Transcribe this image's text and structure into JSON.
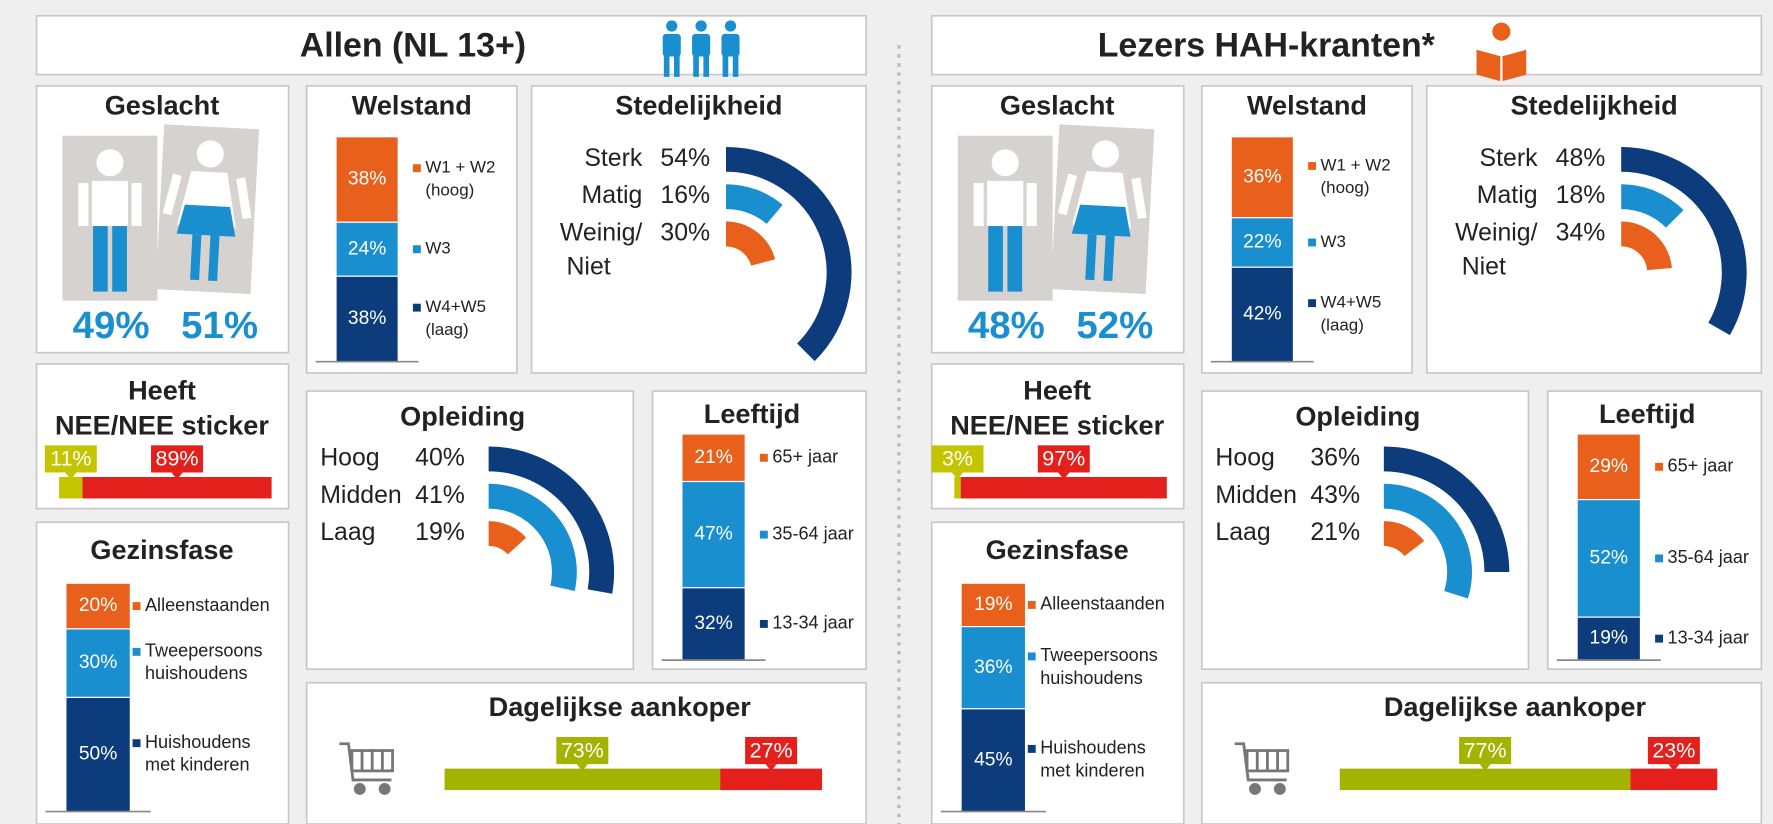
{
  "colors": [
    "#e8601c",
    "#1a8fd0",
    "#0c3c7c"
  ],
  "panels": [
    {
      "title": "Allen (NL 13+)",
      "geslacht": {
        "title": "Geslacht",
        "values": [
          49,
          51
        ],
        "value_labels": [
          "49%",
          "51%"
        ]
      },
      "welstand": {
        "title": "Welstand",
        "categories": [
          [
            "W1 + W2",
            "(hoog)"
          ],
          [
            "W3"
          ],
          [
            "W4+W5",
            "(laag)"
          ]
        ],
        "values": [
          38,
          24,
          38
        ],
        "value_labels": [
          "38%",
          "24%",
          "38%"
        ]
      },
      "stedelijkheid": {
        "title": "Stedelijkheid",
        "categories": [
          [
            "Sterk"
          ],
          [
            "Matig"
          ],
          [
            "Weinig/",
            "Niet"
          ]
        ],
        "values": [
          54,
          16,
          30
        ],
        "value_labels": [
          "54%",
          "16%",
          "30%"
        ]
      },
      "sticker": {
        "title": [
          "Heeft",
          "NEE/NEE sticker"
        ],
        "values": [
          11,
          89
        ],
        "value_labels": [
          "11%",
          "89%"
        ],
        "colors": [
          "#c5c400",
          "#e3201b"
        ]
      },
      "gezinsfase": {
        "title": "Gezinsfase",
        "categories": [
          [
            "Alleenstaanden"
          ],
          [
            "Tweepersoons",
            "huishoudens"
          ],
          [
            "Huishoudens",
            "met kinderen"
          ]
        ],
        "values": [
          20,
          30,
          50
        ],
        "value_labels": [
          "20%",
          "30%",
          "50%"
        ]
      },
      "opleiding": {
        "title": "Opleiding",
        "categories": [
          [
            "Hoog"
          ],
          [
            "Midden"
          ],
          [
            "Laag"
          ]
        ],
        "values": [
          40,
          41,
          19
        ],
        "value_labels": [
          "40%",
          "41%",
          "19%"
        ]
      },
      "leeftijd": {
        "title": "Leeftijd",
        "categories": [
          [
            "65+ jaar"
          ],
          [
            "35-64 jaar"
          ],
          [
            "13-34 jaar"
          ]
        ],
        "values": [
          21,
          47,
          32
        ],
        "value_labels": [
          "21%",
          "47%",
          "32%"
        ]
      },
      "aankoper": {
        "title": "Dagelijkse aankoper",
        "values": [
          73,
          27
        ],
        "value_labels": [
          "73%",
          "27%"
        ],
        "colors": [
          "#a3b300",
          "#e3201b"
        ]
      }
    },
    {
      "title": "Lezers HAH-kranten*",
      "geslacht": {
        "title": "Geslacht",
        "values": [
          48,
          52
        ],
        "value_labels": [
          "48%",
          "52%"
        ]
      },
      "welstand": {
        "title": "Welstand",
        "categories": [
          [
            "W1 + W2",
            "(hoog)"
          ],
          [
            "W3"
          ],
          [
            "W4+W5",
            "(laag)"
          ]
        ],
        "values": [
          36,
          22,
          42
        ],
        "value_labels": [
          "36%",
          "22%",
          "42%"
        ]
      },
      "stedelijkheid": {
        "title": "Stedelijkheid",
        "categories": [
          [
            "Sterk"
          ],
          [
            "Matig"
          ],
          [
            "Weinig/",
            "Niet"
          ]
        ],
        "values": [
          48,
          18,
          34
        ],
        "value_labels": [
          "48%",
          "18%",
          "34%"
        ]
      },
      "sticker": {
        "title": [
          "Heeft",
          "NEE/NEE sticker"
        ],
        "values": [
          3,
          97
        ],
        "value_labels": [
          "3%",
          "97%"
        ],
        "colors": [
          "#c5c400",
          "#e3201b"
        ]
      },
      "gezinsfase": {
        "title": "Gezinsfase",
        "categories": [
          [
            "Alleenstaanden"
          ],
          [
            "Tweepersoons",
            "huishoudens"
          ],
          [
            "Huishoudens",
            "met kinderen"
          ]
        ],
        "values": [
          19,
          36,
          45
        ],
        "value_labels": [
          "19%",
          "36%",
          "45%"
        ]
      },
      "opleiding": {
        "title": "Opleiding",
        "categories": [
          [
            "Hoog"
          ],
          [
            "Midden"
          ],
          [
            "Laag"
          ]
        ],
        "values": [
          36,
          43,
          21
        ],
        "value_labels": [
          "36%",
          "43%",
          "21%"
        ]
      },
      "leeftijd": {
        "title": "Leeftijd",
        "categories": [
          [
            "65+ jaar"
          ],
          [
            "35-64 jaar"
          ],
          [
            "13-34 jaar"
          ]
        ],
        "values": [
          29,
          52,
          19
        ],
        "value_labels": [
          "29%",
          "52%",
          "19%"
        ]
      },
      "aankoper": {
        "title": "Dagelijkse aankoper",
        "values": [
          77,
          23
        ],
        "value_labels": [
          "77%",
          "23%"
        ],
        "colors": [
          "#a3b300",
          "#e3201b"
        ]
      }
    }
  ]
}
